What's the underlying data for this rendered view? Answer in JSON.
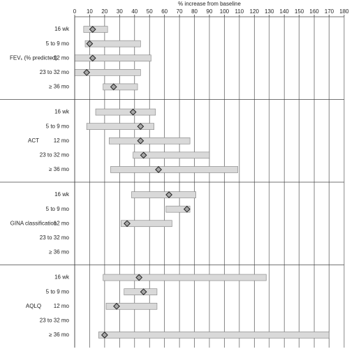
{
  "chart_data": {
    "type": "range",
    "xlabel": "% increase from baseline",
    "xlim": [
      0,
      180
    ],
    "xticks": [
      0,
      10,
      20,
      30,
      40,
      50,
      60,
      70,
      80,
      90,
      100,
      110,
      120,
      130,
      140,
      150,
      160,
      170,
      180
    ],
    "bar_color": "#d9d9d9",
    "point_color": "#a6a6a6",
    "grid": true,
    "groups": [
      {
        "name": "FEV₁ (% predicted)",
        "categories": [
          "16 wk",
          "5 to 9 mo",
          "12 mo",
          "23 to 32 mo",
          "≥ 36 mo"
        ],
        "low": [
          6,
          7,
          0,
          0,
          19
        ],
        "high": [
          22,
          44,
          51,
          44,
          42
        ],
        "values": [
          12,
          10,
          12,
          8,
          26
        ]
      },
      {
        "name": "ACT",
        "categories": [
          "16 wk",
          "5 to 9 mo",
          "12 mo",
          "23 to 32 mo",
          "≥ 36 mo"
        ],
        "low": [
          14,
          8,
          23,
          39,
          24
        ],
        "high": [
          54,
          53,
          77,
          90,
          109
        ],
        "values": [
          39,
          44,
          44,
          46,
          56
        ]
      },
      {
        "name": "GINA classification",
        "categories": [
          "16 wk",
          "5 to 9 mo",
          "12 mo",
          "23 to 32 mo",
          "≥ 36 mo"
        ],
        "low": [
          38,
          61,
          31,
          null,
          null
        ],
        "high": [
          81,
          77,
          65,
          null,
          null
        ],
        "values": [
          63,
          75,
          35,
          null,
          null
        ]
      },
      {
        "name": "AQLQ",
        "categories": [
          "16 wk",
          "5 to 9 mo",
          "12 mo",
          "23 to 32 mo",
          "≥ 36 mo"
        ],
        "low": [
          19,
          33,
          21,
          null,
          16
        ],
        "high": [
          128,
          55,
          55,
          null,
          170
        ],
        "values": [
          43,
          46,
          28,
          null,
          20
        ]
      }
    ]
  }
}
